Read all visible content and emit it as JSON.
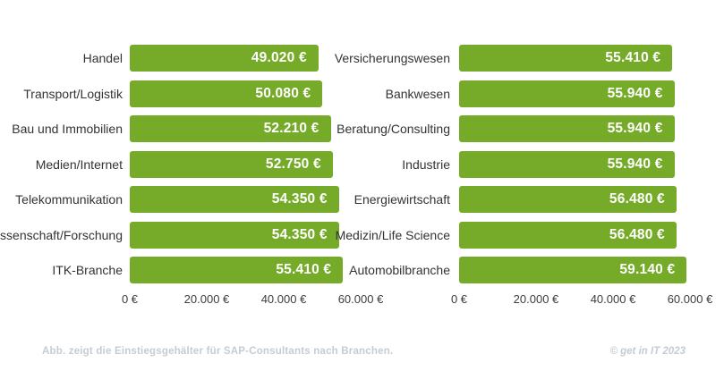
{
  "footer": {
    "caption": "Abb. zeigt die Einstiegsgehälter für SAP-Consultants nach Branchen.",
    "credit": "© get in IT 2023"
  },
  "colors": {
    "bar_green": "#76ab29",
    "value_text": "#ffffff",
    "category_text": "#333333",
    "axis_text": "#3d3d3d",
    "footer_text": "#c4ccd4",
    "background": "#ffffff"
  },
  "chart_data": [
    {
      "type": "bar",
      "orientation": "horizontal",
      "title": "",
      "xlabel": "",
      "ylabel": "",
      "grid": false,
      "legend": false,
      "xlim": [
        0,
        60000
      ],
      "x_ticks": [
        "0 €",
        "20.000 €",
        "40.000 €",
        "60.000 €"
      ],
      "categories": [
        "Handel",
        "Transport/Logistik",
        "Bau und Immobilien",
        "Medien/Internet",
        "Telekommunikation",
        "Wissenschaft/Forschung",
        "ITK-Branche"
      ],
      "values": [
        49020,
        50080,
        52210,
        52750,
        54350,
        54350,
        55410
      ],
      "value_labels": [
        "49.020 €",
        "50.080 €",
        "52.210 €",
        "52.750 €",
        "54.350 €",
        "54.350 €",
        "55.410 €"
      ],
      "bar_color": "#76ab29"
    },
    {
      "type": "bar",
      "orientation": "horizontal",
      "title": "",
      "xlabel": "",
      "ylabel": "",
      "grid": false,
      "legend": false,
      "xlim": [
        0,
        60000
      ],
      "x_ticks": [
        "0 €",
        "20.000 €",
        "40.000 €",
        "60.000 €"
      ],
      "categories": [
        "Versicherungswesen",
        "Bankwesen",
        "Beratung/Consulting",
        "Industrie",
        "Energiewirtschaft",
        "Medizin/Life Science",
        "Automobilbranche"
      ],
      "values": [
        55410,
        55940,
        55940,
        55940,
        56480,
        56480,
        59140
      ],
      "value_labels": [
        "55.410 €",
        "55.940 €",
        "55.940 €",
        "55.940 €",
        "56.480 €",
        "56.480 €",
        "59.140 €"
      ],
      "bar_color": "#76ab29"
    }
  ]
}
